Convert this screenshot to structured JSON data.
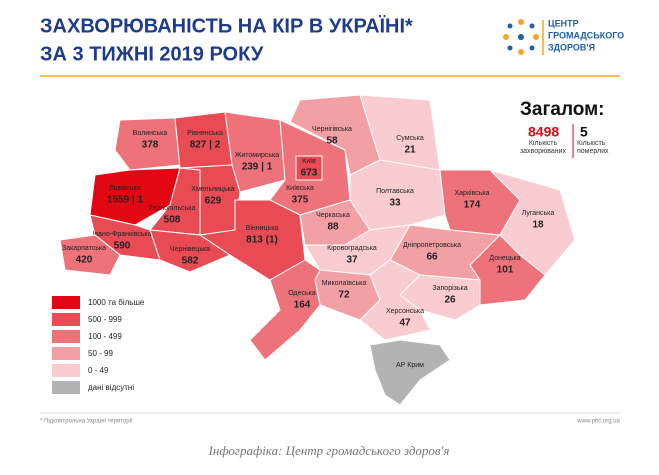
{
  "header": {
    "title_line1": "ЗАХВОРЮВАНІСТЬ НА КІР В УКРАЇНІ*",
    "title_line2": "ЗА 3 ТИЖНІ 2019 РОКУ",
    "logo_line1": "ЦЕНТР",
    "logo_line2": "ГРОМАДСЬКОГО",
    "logo_line3": "ЗДОРОВ'Я"
  },
  "totals": {
    "title": "Загалом:",
    "cases": 8498,
    "cases_label": "Кількість захворюваних",
    "deaths": 5,
    "deaths_label": "Кількість померлих"
  },
  "legend": [
    {
      "label": "1000 та більше",
      "min": 1000,
      "color": "#e30613"
    },
    {
      "label": "500 - 999",
      "min": 500,
      "max": 999,
      "color": "#e94b55"
    },
    {
      "label": "100 - 499",
      "min": 100,
      "max": 499,
      "color": "#ee727a"
    },
    {
      "label": "50 - 99",
      "min": 50,
      "max": 99,
      "color": "#f3a0a5"
    },
    {
      "label": "0 - 49",
      "min": 0,
      "max": 49,
      "color": "#f8ccd0"
    },
    {
      "label": "дані відсутні",
      "color": "#b3b3b3"
    }
  ],
  "regions": [
    {
      "name": "Волинська",
      "cases": 378
    },
    {
      "name": "Рівненська",
      "cases": 827,
      "value_label": "827 | 2"
    },
    {
      "name": "Житомирська",
      "cases": 239,
      "value_label": "239 | 1"
    },
    {
      "name": "Київська",
      "cases": 375
    },
    {
      "name": "Чернігівська",
      "cases": 58
    },
    {
      "name": "Сумська",
      "cases": 21
    },
    {
      "name": "Львівська",
      "cases": 1559,
      "value_label": "1559 | 1"
    },
    {
      "name": "Тернопільська",
      "cases": 508
    },
    {
      "name": "Хмельницька",
      "cases": 629
    },
    {
      "name": "Івано-Франківська",
      "cases": 590
    },
    {
      "name": "Закарпатська",
      "cases": 420
    },
    {
      "name": "Чернівецька",
      "cases": 582
    },
    {
      "name": "Вінницька",
      "cases": 813,
      "value_label": "813 (1)"
    },
    {
      "name": "Черкаська",
      "cases": 88
    },
    {
      "name": "Полтавська",
      "cases": 33
    },
    {
      "name": "Харківська",
      "cases": 174
    },
    {
      "name": "Луганська",
      "cases": 18
    },
    {
      "name": "Донецька",
      "cases": 101
    },
    {
      "name": "Дніпропетровська",
      "cases": 66
    },
    {
      "name": "Кіровоградська",
      "cases": 37
    },
    {
      "name": "Миколаївська",
      "cases": 72
    },
    {
      "name": "Одеська",
      "cases": 164
    },
    {
      "name": "Запорізька",
      "cases": 26
    },
    {
      "name": "Херсонська",
      "cases": 47
    },
    {
      "name": "Київ",
      "cases": 673
    },
    {
      "name": "АР Крим"
    }
  ],
  "footer": {
    "note": "* Підконтрольна Україні території",
    "site": "www.phc.org.ua",
    "caption": "Інфографіка: Центр громадського здоров'я"
  }
}
